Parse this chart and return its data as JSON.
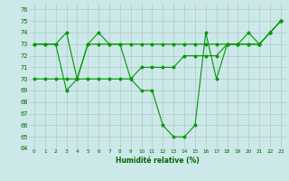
{
  "xlabel": "Humidité relative (%)",
  "xlim": [
    -0.5,
    23.5
  ],
  "ylim": [
    64,
    76.5
  ],
  "yticks": [
    64,
    65,
    66,
    67,
    68,
    69,
    70,
    71,
    72,
    73,
    74,
    75,
    76
  ],
  "xticks": [
    0,
    1,
    2,
    3,
    4,
    5,
    6,
    7,
    8,
    9,
    10,
    11,
    12,
    13,
    14,
    15,
    16,
    17,
    18,
    19,
    20,
    21,
    22,
    23
  ],
  "bg_color": "#cce8e8",
  "grid_color": "#b0c8c8",
  "line_color": "#009900",
  "series1": [
    73,
    73,
    73,
    74,
    70,
    73,
    74,
    73,
    73,
    70,
    69,
    69,
    66,
    65,
    65,
    66,
    74,
    70,
    73,
    73,
    74,
    73,
    74,
    75
  ],
  "series2": [
    73,
    73,
    73,
    69,
    70,
    73,
    73,
    73,
    73,
    73,
    73,
    73,
    73,
    73,
    73,
    73,
    73,
    73,
    73,
    73,
    73,
    73,
    74,
    75
  ],
  "series3": [
    70,
    70,
    70,
    70,
    70,
    70,
    70,
    70,
    70,
    70,
    71,
    71,
    71,
    71,
    72,
    72,
    72,
    72,
    73,
    73,
    73,
    73,
    74,
    75
  ],
  "x": [
    0,
    1,
    2,
    3,
    4,
    5,
    6,
    7,
    8,
    9,
    10,
    11,
    12,
    13,
    14,
    15,
    16,
    17,
    18,
    19,
    20,
    21,
    22,
    23
  ]
}
